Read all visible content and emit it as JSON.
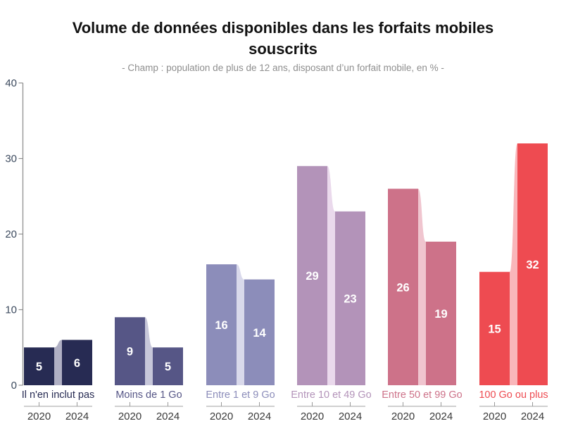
{
  "chart_data": {
    "type": "bar",
    "title": "Volume de données disponibles dans les forfaits mobiles souscrits",
    "subtitle": "- Champ : population de plus de 12 ans, disposant d’un forfait mobile, en % -",
    "unit_note": "en %",
    "ylim": [
      0,
      40
    ],
    "yticks": [
      0,
      10,
      20,
      30,
      40
    ],
    "series_labels": [
      "2020",
      "2024"
    ],
    "categories": [
      {
        "label": "Il n'en inclut pas",
        "values": [
          5,
          6
        ],
        "bar_color": "#272b53",
        "band_color": "#b0b0c4",
        "label_color": "#272b53"
      },
      {
        "label": "Moins de 1 Go",
        "values": [
          9,
          5
        ],
        "bar_color": "#565686",
        "band_color": "#c7c7da",
        "label_color": "#565686"
      },
      {
        "label": "Entre 1 et 9 Go",
        "values": [
          16,
          14
        ],
        "bar_color": "#8c8dba",
        "band_color": "#d9d9eb",
        "label_color": "#8c8dba"
      },
      {
        "label": "Entre 10 et 49 Go",
        "values": [
          29,
          23
        ],
        "bar_color": "#b393b9",
        "band_color": "#ead9ec",
        "label_color": "#b393b9"
      },
      {
        "label": "Entre 50 et 99 Go",
        "values": [
          26,
          19
        ],
        "bar_color": "#cd7289",
        "band_color": "#f0c5cf",
        "label_color": "#cd7289"
      },
      {
        "label": "100 Go ou plus",
        "values": [
          15,
          32
        ],
        "bar_color": "#ee4b51",
        "band_color": "#f9b6ba",
        "label_color": "#ee4b51"
      }
    ],
    "colors": {
      "y_axis": "#8f8f8f",
      "y_tick_label": "#3c4a5e",
      "mini_axis": "#b5b5b5",
      "mini_tick": "#999999",
      "year_label": "#3a3a3a",
      "value_label": "#ffffff"
    },
    "legend_position": "none",
    "grid": false
  }
}
